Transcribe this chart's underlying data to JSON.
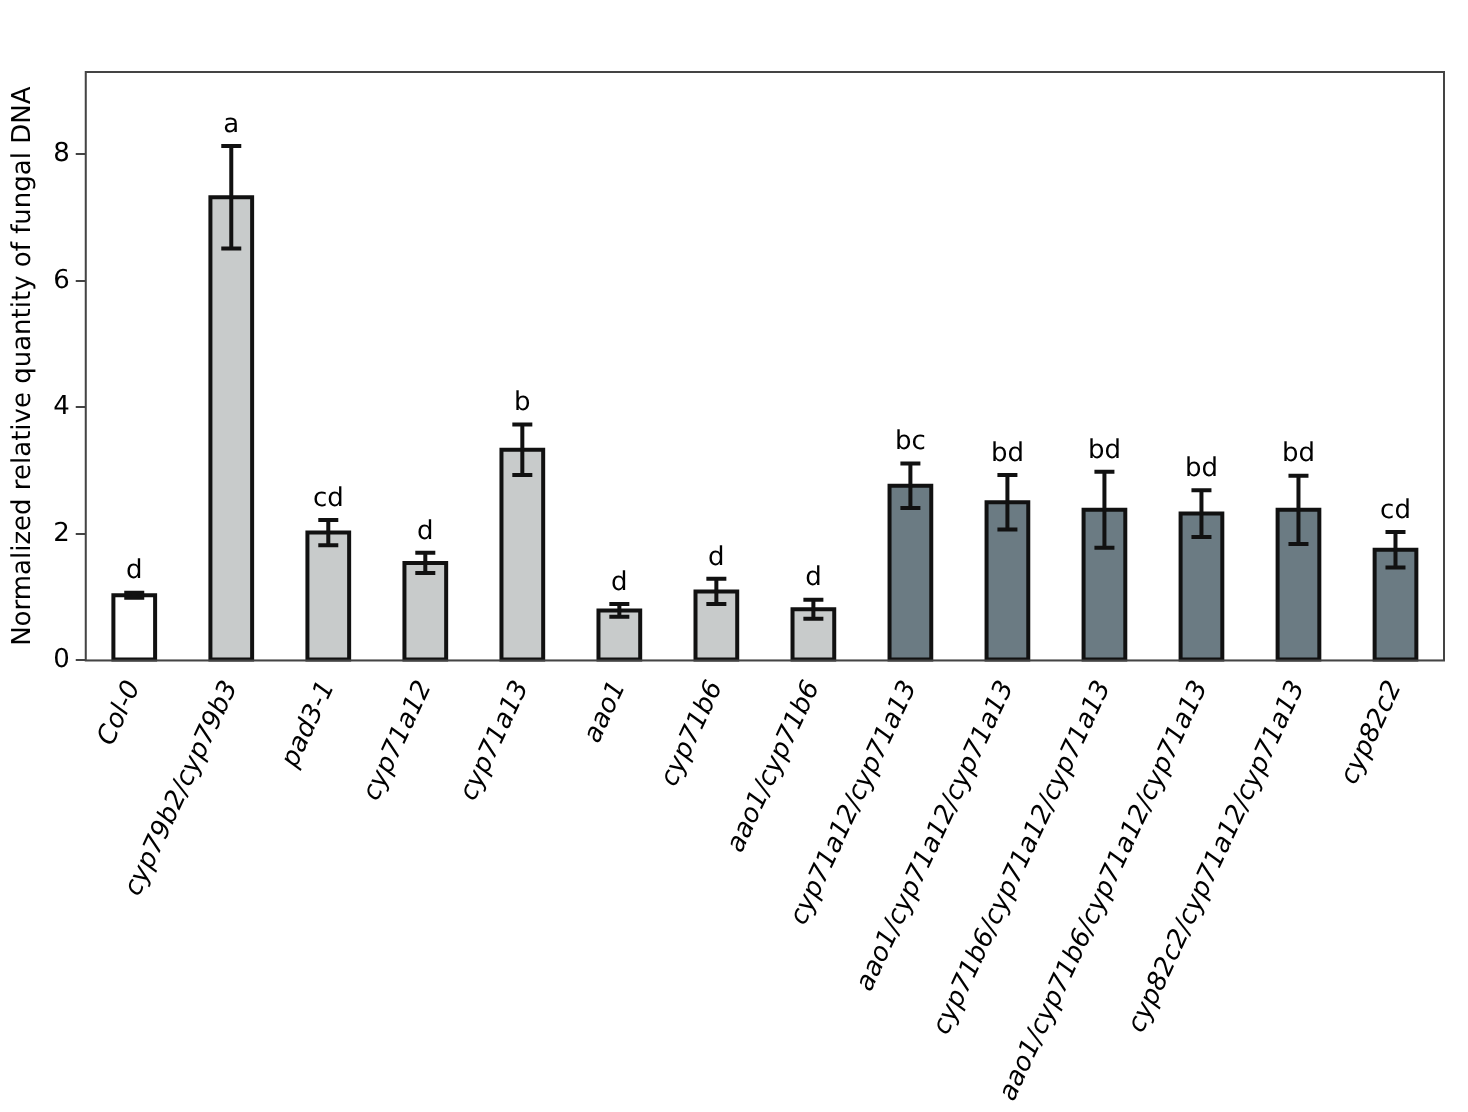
{
  "chart_data": {
    "type": "bar",
    "ylabel": "Normalized relative quantity of fungal DNA",
    "categories": [
      "Col-0",
      "cyp79b2/cyp79b3",
      "pad3-1",
      "cyp71a12",
      "cyp71a13",
      "aao1",
      "cyp71b6",
      "aao1/cyp71b6",
      "cyp71a12/cyp71a13",
      "aao1/cyp71a12/cyp71a13",
      "cyp71b6/cyp71a12/cyp71a13",
      "aao1/cyp71b6/cyp71a12/cyp71a13",
      "cyp82c2/cyp71a12/cyp71a13",
      "cyp82c2"
    ],
    "values": [
      1.03,
      7.32,
      2.02,
      1.54,
      3.33,
      0.79,
      1.09,
      0.81,
      2.76,
      2.5,
      2.38,
      2.32,
      2.38,
      1.75
    ],
    "errors": [
      0.04,
      0.81,
      0.2,
      0.16,
      0.4,
      0.1,
      0.2,
      0.15,
      0.35,
      0.43,
      0.6,
      0.37,
      0.54,
      0.28
    ],
    "colors": [
      "#ffffff",
      "#c8cbcb",
      "#c8cbcb",
      "#c8cbcb",
      "#c8cbcb",
      "#c8cbcb",
      "#c8cbcb",
      "#c8cbcb",
      "#6b7b83",
      "#6b7b83",
      "#6b7b83",
      "#6b7b83",
      "#6b7b83",
      "#6b7b83"
    ],
    "annotations": [
      {
        "text": "d",
        "x": "Col-0",
        "y": 1.07
      },
      {
        "text": "a",
        "x": "cyp79b2/cyp79b3",
        "y": 8.13
      },
      {
        "text": "cd",
        "x": "pad3-1",
        "y": 2.22
      },
      {
        "text": "d",
        "x": "cyp71a12",
        "y": 1.7
      },
      {
        "text": "b",
        "x": "cyp71a13",
        "y": 3.73
      },
      {
        "text": "d",
        "x": "aao1",
        "y": 0.89
      },
      {
        "text": "d",
        "x": "cyp71b6",
        "y": 1.29
      },
      {
        "text": "d",
        "x": "aao1/cyp71b6",
        "y": 0.96
      },
      {
        "text": "bc",
        "x": "cyp71a12/cyp71a13",
        "y": 3.11
      },
      {
        "text": "bd",
        "x": "aao1/cyp71a12/cyp71a13",
        "y": 2.93
      },
      {
        "text": "bd",
        "x": "cyp71b6/cyp71a12/cyp71a13",
        "y": 2.98
      },
      {
        "text": "bd",
        "x": "aao1/cyp71b6/cyp71a12/cyp71a13",
        "y": 2.69
      },
      {
        "text": "bd",
        "x": "cyp82c2/cyp71a12/cyp71a13",
        "y": 2.92
      },
      {
        "text": "cd",
        "x": "cyp82c2",
        "y": 2.03
      }
    ],
    "ylim": [
      0,
      9.3
    ],
    "yticks": [
      0,
      2,
      4,
      6,
      8
    ],
    "grid": false,
    "legend": false
  }
}
